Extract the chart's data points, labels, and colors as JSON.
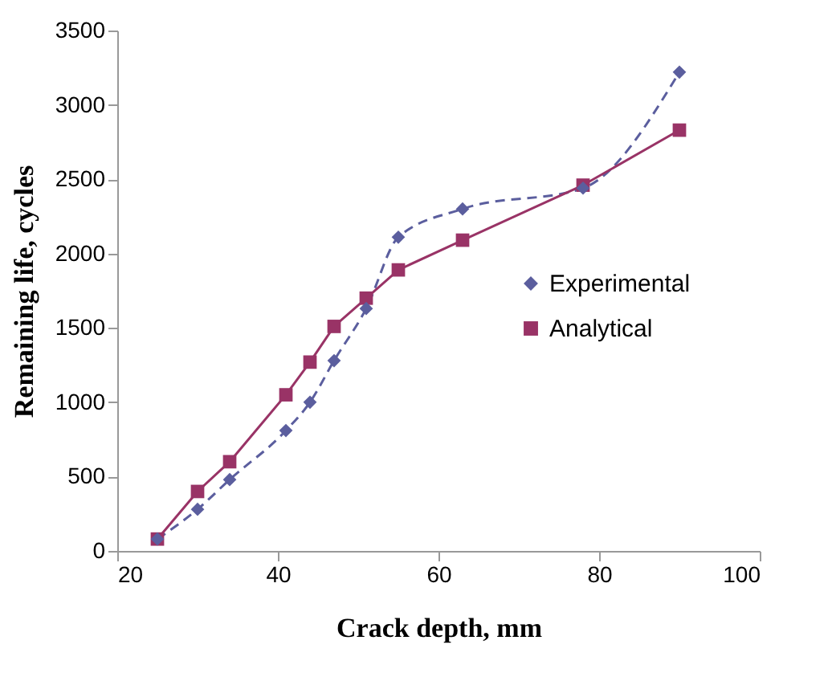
{
  "chart_data": {
    "type": "line",
    "xlabel": "Crack depth, mm",
    "ylabel": "Remaining life, cycles",
    "x": [
      25,
      30,
      34,
      41,
      44,
      47,
      51,
      55,
      63,
      78,
      90
    ],
    "series": [
      {
        "name": "Experimental",
        "color": "#5b5e9e",
        "marker": "diamond",
        "line_style": "dashed",
        "values": [
          80,
          280,
          480,
          810,
          1000,
          1280,
          1630,
          2110,
          2300,
          2440,
          3220
        ]
      },
      {
        "name": "Analytical",
        "color": "#993366",
        "marker": "square",
        "line_style": "solid",
        "values": [
          80,
          400,
          600,
          1050,
          1270,
          1510,
          1700,
          1890,
          2090,
          2460,
          2830
        ]
      }
    ],
    "xlim": [
      20,
      100
    ],
    "xticks": [
      20,
      40,
      60,
      80,
      100
    ],
    "ylim": [
      0,
      3500
    ],
    "yticks": [
      0,
      500,
      1000,
      1500,
      2000,
      2500,
      3000,
      3500
    ],
    "grid": false,
    "legend": "right"
  }
}
